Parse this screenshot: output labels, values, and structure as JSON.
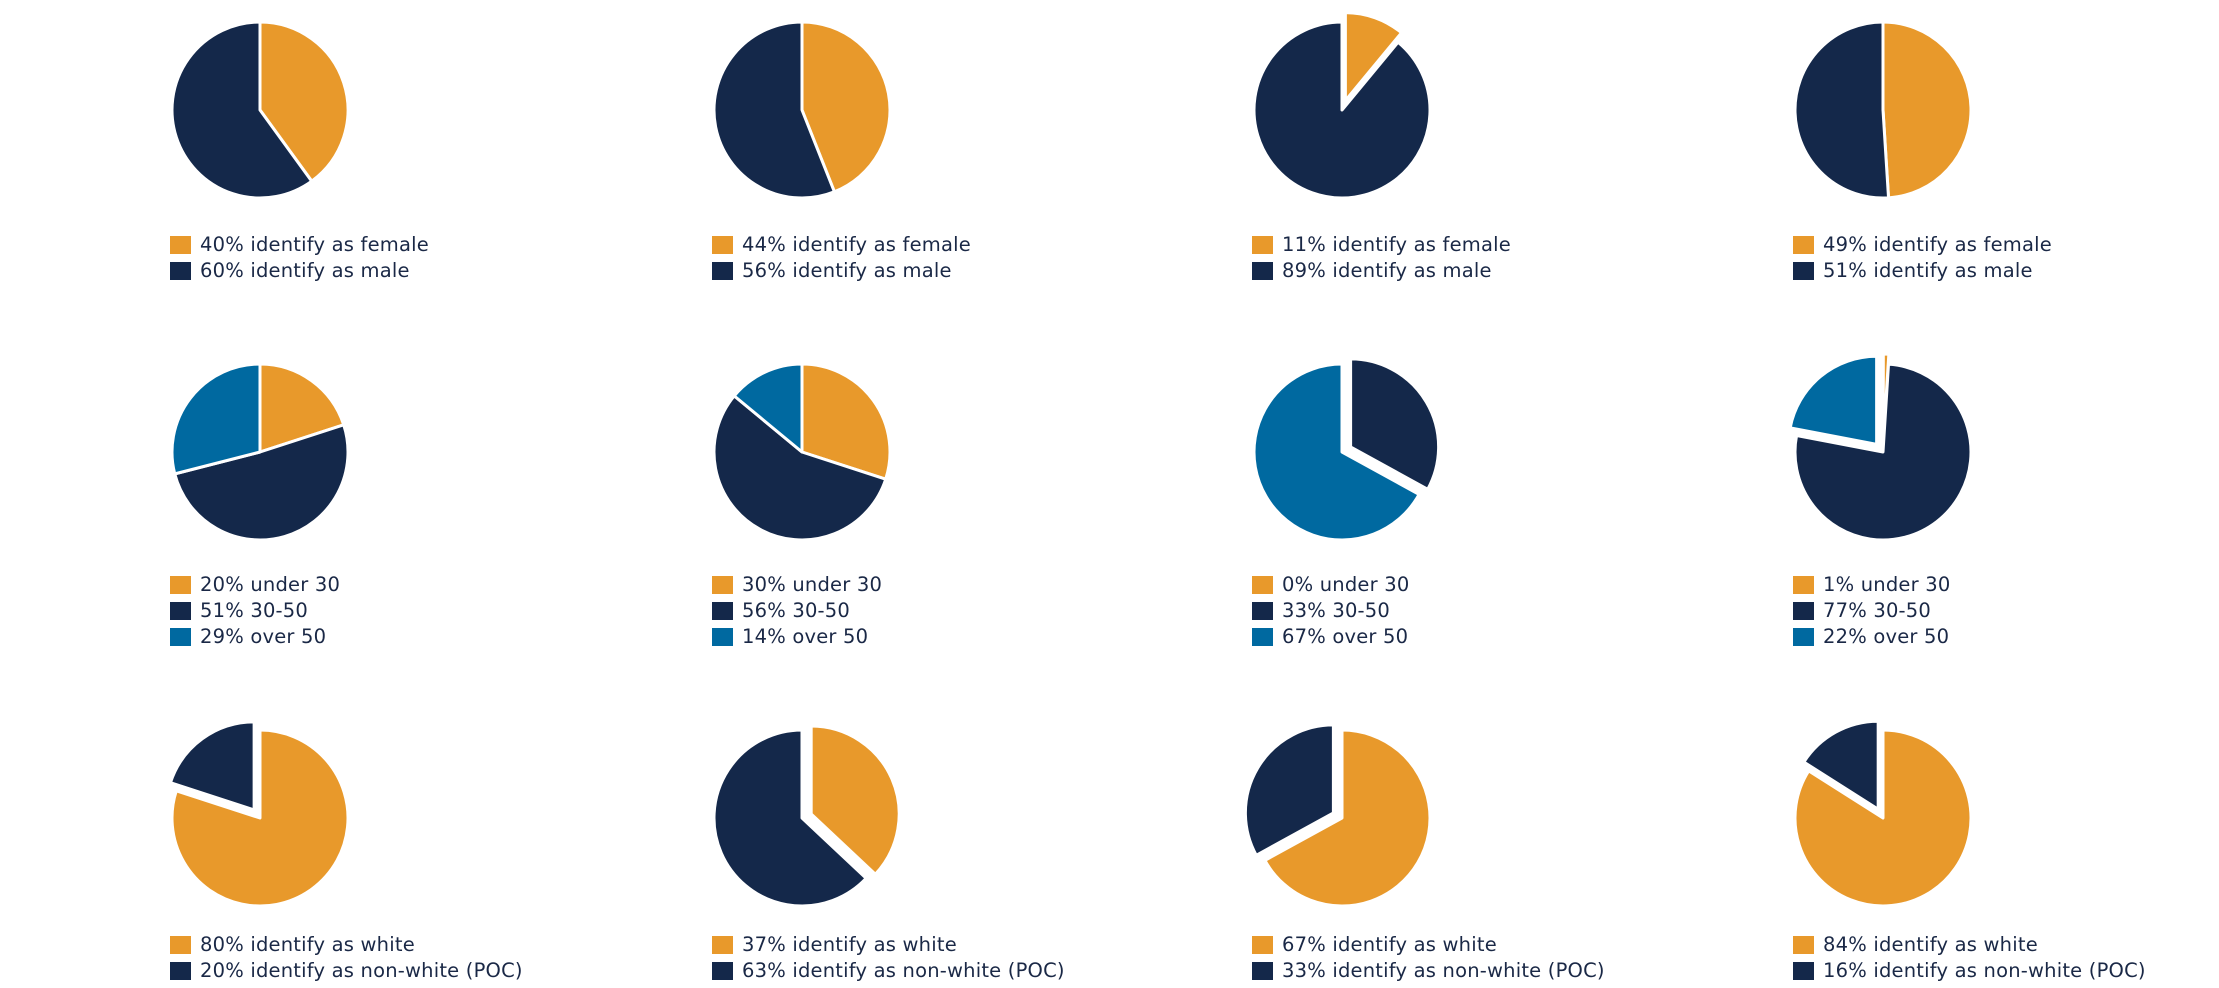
{
  "colors": {
    "orange": "#E8992B",
    "navy": "#14284A",
    "blue": "#0069A0",
    "slice_border": "#FFFFFF",
    "text": "#1A2846"
  },
  "chart_data": [
    {
      "type": "pie",
      "slices": [
        {
          "label": "40% identify as female",
          "value": 40,
          "color": "orange"
        },
        {
          "label": "60% identify as male",
          "value": 60,
          "color": "navy"
        }
      ]
    },
    {
      "type": "pie",
      "slices": [
        {
          "label": "44% identify as female",
          "value": 44,
          "color": "orange"
        },
        {
          "label": "56% identify as male",
          "value": 56,
          "color": "navy"
        }
      ]
    },
    {
      "type": "pie",
      "slices": [
        {
          "label": "11% identify as female",
          "value": 11,
          "color": "orange",
          "exploded": true
        },
        {
          "label": "89% identify as male",
          "value": 89,
          "color": "navy"
        }
      ]
    },
    {
      "type": "pie",
      "slices": [
        {
          "label": "49% identify as female",
          "value": 49,
          "color": "orange"
        },
        {
          "label": "51% identify as male",
          "value": 51,
          "color": "navy"
        }
      ]
    },
    {
      "type": "pie",
      "slices": [
        {
          "label": "20% under 30",
          "value": 20,
          "color": "orange"
        },
        {
          "label": "51% 30-50",
          "value": 51,
          "color": "navy"
        },
        {
          "label": "29% over 50",
          "value": 29,
          "color": "blue"
        }
      ]
    },
    {
      "type": "pie",
      "slices": [
        {
          "label": "30% under 30",
          "value": 30,
          "color": "orange"
        },
        {
          "label": "56% 30-50",
          "value": 56,
          "color": "navy"
        },
        {
          "label": "14% over 50",
          "value": 14,
          "color": "blue"
        }
      ]
    },
    {
      "type": "pie",
      "slices": [
        {
          "label": "0% under 30",
          "value": 0,
          "color": "orange"
        },
        {
          "label": "33% 30-50",
          "value": 33,
          "color": "navy",
          "exploded": true
        },
        {
          "label": "67% over 50",
          "value": 67,
          "color": "blue"
        }
      ]
    },
    {
      "type": "pie",
      "slices": [
        {
          "label": "1% under 30",
          "value": 1,
          "color": "orange",
          "exploded": true
        },
        {
          "label": "77% 30-50",
          "value": 77,
          "color": "navy"
        },
        {
          "label": "22% over 50",
          "value": 22,
          "color": "blue",
          "exploded": true
        }
      ]
    },
    {
      "type": "pie",
      "slices": [
        {
          "label": "80% identify as white",
          "value": 80,
          "color": "orange"
        },
        {
          "label": "20% identify as non-white (POC)",
          "value": 20,
          "color": "navy",
          "exploded": true
        }
      ]
    },
    {
      "type": "pie",
      "slices": [
        {
          "label": "37% identify as white",
          "value": 37,
          "color": "orange",
          "exploded": true
        },
        {
          "label": "63% identify as non-white (POC)",
          "value": 63,
          "color": "navy"
        }
      ]
    },
    {
      "type": "pie",
      "slices": [
        {
          "label": "67% identify as white",
          "value": 67,
          "color": "orange"
        },
        {
          "label": "33% identify as non-white (POC)",
          "value": 33,
          "color": "navy",
          "exploded": true
        }
      ]
    },
    {
      "type": "pie",
      "slices": [
        {
          "label": "84% identify as white",
          "value": 84,
          "color": "orange"
        },
        {
          "label": "16% identify as non-white (POC)",
          "value": 16,
          "color": "navy",
          "exploded": true
        }
      ]
    }
  ]
}
